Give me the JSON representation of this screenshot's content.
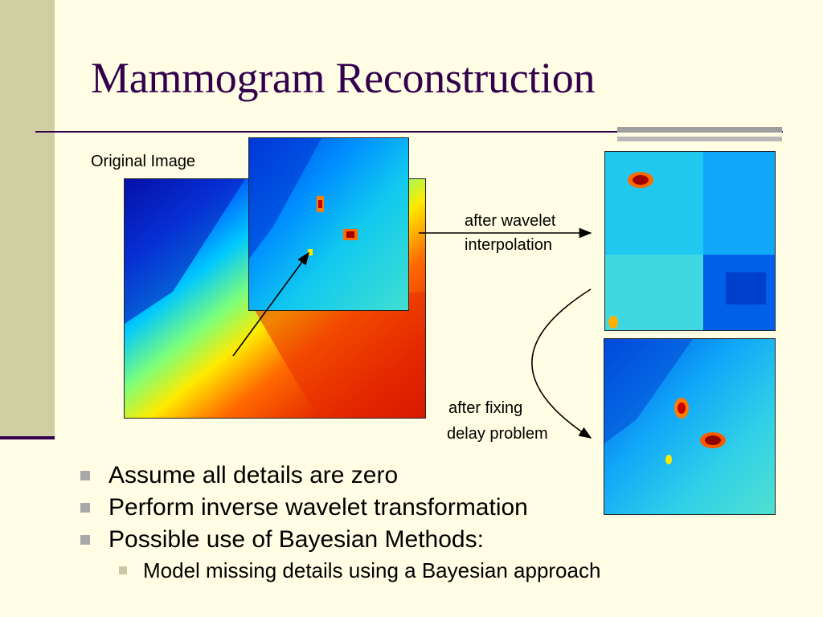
{
  "slide": {
    "title": "Mammogram Reconstruction",
    "labels": {
      "original": "Original Image",
      "wavelet_line1": "after wavelet",
      "wavelet_line2": "interpolation",
      "fixing_line1": "after fixing",
      "fixing_line2": "delay problem"
    },
    "bullets": [
      "Assume all details are zero",
      "Perform inverse wavelet transformation",
      "Possible use of Bayesian Methods:"
    ],
    "sub_bullets": [
      "Model missing details using a Bayesian approach"
    ]
  },
  "colors": {
    "background": "#FFFDE3",
    "side_band": "#CFCFA3",
    "title": "#33004D",
    "heatmap": [
      "#00008F",
      "#0050FF",
      "#00C8FF",
      "#7DFF7A",
      "#FFEA00",
      "#FF6A00",
      "#C80000",
      "#800000"
    ]
  }
}
